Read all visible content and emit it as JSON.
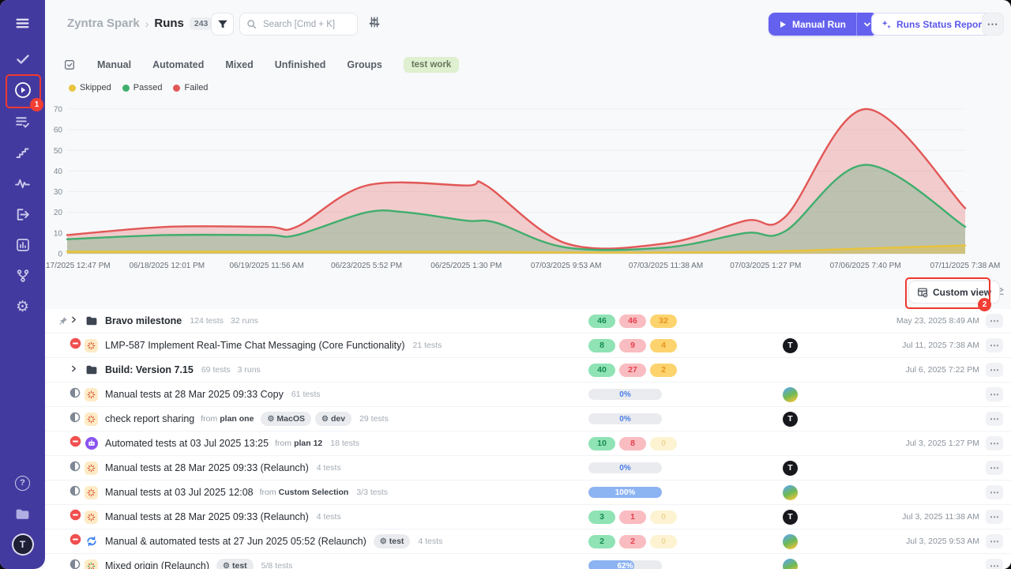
{
  "icons": {
    "more": "⋯",
    "breadcrumb_separator": "›",
    "gear_glyph": "⚙",
    "help_glyph": "?",
    "avatar_letter": "T"
  },
  "annotations": {
    "step1": "1",
    "step2": "2"
  },
  "header": {
    "project": "Zyntra Spark",
    "page": "Runs",
    "count": "243",
    "search_placeholder": "Search [Cmd + K]",
    "manual_run_label": "Manual Run",
    "runs_status_report_label": "Runs Status Report"
  },
  "tabs": {
    "items": [
      "Manual",
      "Automated",
      "Mixed",
      "Unfinished",
      "Groups"
    ],
    "tag": "test work"
  },
  "chart_data": {
    "type": "area",
    "title": "",
    "xlabel": "",
    "ylabel": "",
    "ylim": [
      0,
      70
    ],
    "ytick_step": 10,
    "grid": true,
    "legend_position": "top-left",
    "x_labels": [
      "17/2025 12:47 PM",
      "06/18/2025 12:01 PM",
      "06/19/2025 11:56 AM",
      "06/23/2025 5:52 PM",
      "06/25/2025 1:30 PM",
      "07/03/2025 9:53 AM",
      "07/03/2025 11:38 AM",
      "07/03/2025 1:27 PM",
      "07/06/2025 7:40 PM",
      "07/11/2025 7:38 AM"
    ],
    "series": [
      {
        "name": "Skipped",
        "color": "#e8c33d",
        "fill_alpha": 0.45,
        "points": [
          [
            0,
            1
          ],
          [
            1,
            1
          ],
          [
            2,
            1
          ],
          [
            3,
            1
          ],
          [
            4,
            1
          ],
          [
            5,
            0.6
          ],
          [
            6,
            0.6
          ],
          [
            7,
            1
          ],
          [
            8,
            2.5
          ],
          [
            9,
            4
          ]
        ]
      },
      {
        "name": "Passed",
        "color": "#3fae6d",
        "fill_alpha": 0.3,
        "points": [
          [
            0,
            7
          ],
          [
            1,
            9
          ],
          [
            2,
            9
          ],
          [
            2.3,
            9
          ],
          [
            3,
            20
          ],
          [
            3.4,
            20
          ],
          [
            4,
            16
          ],
          [
            4.3,
            15
          ],
          [
            5,
            3
          ],
          [
            6,
            3
          ],
          [
            6.8,
            10
          ],
          [
            7.2,
            11
          ],
          [
            8,
            43
          ],
          [
            9,
            13
          ]
        ]
      },
      {
        "name": "Failed",
        "color": "#e25757",
        "fill_alpha": 0.28,
        "points": [
          [
            0,
            9
          ],
          [
            1,
            13
          ],
          [
            2,
            13
          ],
          [
            2.3,
            13
          ],
          [
            3,
            33
          ],
          [
            4,
            33
          ],
          [
            4.2,
            33
          ],
          [
            5,
            5
          ],
          [
            6,
            5
          ],
          [
            6.8,
            16
          ],
          [
            7.2,
            18
          ],
          [
            8,
            70
          ],
          [
            9,
            22
          ]
        ]
      }
    ]
  },
  "custom_view_label": "Custom view",
  "table": {
    "from_label": "from",
    "rows": [
      {
        "pinned": true,
        "expandable": true,
        "kind": "folder",
        "name": "Bravo milestone",
        "meta": [
          "124 tests",
          "32 runs"
        ],
        "badges": {
          "passed": "46",
          "failed": "46",
          "skipped": "32"
        },
        "date": "May 23, 2025 8:49 AM"
      },
      {
        "status": "aborted",
        "kind": "manual",
        "name": "LMP-587 Implement Real-Time Chat Messaging (Core Functionality)",
        "meta": [
          "21 tests"
        ],
        "badges": {
          "passed": "8",
          "failed": "9",
          "skipped": "4"
        },
        "avatar": "T",
        "date": "Jul 11, 2025 7:38 AM"
      },
      {
        "expandable": true,
        "kind": "folder",
        "name": "Build: Version 7.15",
        "meta": [
          "69 tests",
          "3 runs"
        ],
        "badges": {
          "passed": "40",
          "failed": "27",
          "skipped": "2"
        },
        "date": "Jul 6, 2025 7:22 PM"
      },
      {
        "status": "progress",
        "kind": "manual",
        "name": "Manual tests at 28 Mar 2025 09:33 Copy",
        "meta": [
          "61 tests"
        ],
        "progress": {
          "label": "0%",
          "pct": 0
        },
        "avatar": "photo"
      },
      {
        "status": "progress",
        "kind": "manual",
        "name": "check report sharing",
        "from": "plan one",
        "configs": [
          "MacOS",
          "dev"
        ],
        "meta": [
          "29 tests"
        ],
        "progress": {
          "label": "0%",
          "pct": 0
        },
        "avatar": "T"
      },
      {
        "status": "aborted",
        "kind": "automated",
        "name": "Automated tests at 03 Jul 2025 13:25",
        "from": "plan 12",
        "meta": [
          "18 tests"
        ],
        "badges": {
          "passed": "10",
          "failed": "8",
          "skipped": "0"
        },
        "date": "Jul 3, 2025 1:27 PM"
      },
      {
        "status": "progress",
        "kind": "manual",
        "name": "Manual tests at 28 Mar 2025 09:33 (Relaunch)",
        "meta": [
          "4 tests"
        ],
        "progress": {
          "label": "0%",
          "pct": 0
        },
        "avatar": "T"
      },
      {
        "status": "progress",
        "kind": "manual",
        "name": "Manual tests at 03 Jul 2025 12:08",
        "from": "Custom Selection",
        "meta": [
          "3/3 tests"
        ],
        "progress": {
          "label": "100%",
          "pct": 100
        },
        "avatar": "photo"
      },
      {
        "status": "aborted",
        "kind": "manual",
        "name": "Manual tests at 28 Mar 2025 09:33 (Relaunch)",
        "meta": [
          "4 tests"
        ],
        "badges": {
          "passed": "3",
          "failed": "1",
          "skipped": "0"
        },
        "avatar": "T",
        "date": "Jul 3, 2025 11:38 AM"
      },
      {
        "status": "aborted",
        "kind": "mixed",
        "name": "Manual & automated tests at 27 Jun 2025 05:52 (Relaunch)",
        "configs": [
          "test"
        ],
        "meta": [
          "4 tests"
        ],
        "badges": {
          "passed": "2",
          "failed": "2",
          "skipped": "0"
        },
        "avatar": "photo",
        "date": "Jul 3, 2025 9:53 AM"
      },
      {
        "status": "progress",
        "kind": "mixed2",
        "name": "Mixed origin (Relaunch)",
        "configs": [
          "test"
        ],
        "meta": [
          "5/8 tests"
        ],
        "progress": {
          "label": "62%",
          "pct": 62
        },
        "avatar": "photo"
      }
    ]
  }
}
